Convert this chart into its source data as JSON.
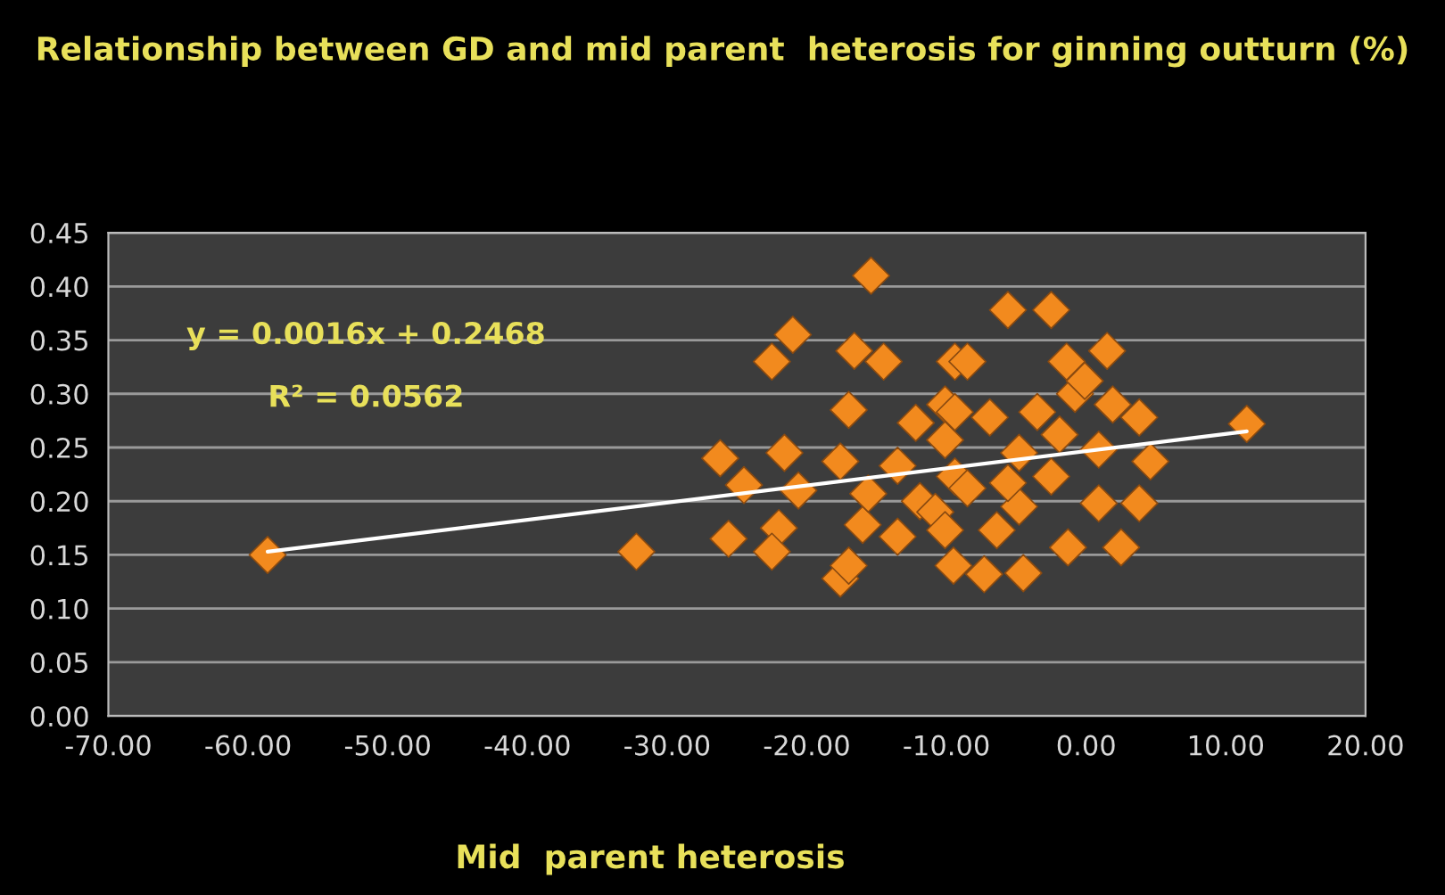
{
  "chart_data": {
    "type": "scatter",
    "title": "Relationship between GD and mid parent  heterosis for ginning outturn (%)",
    "xlabel": "Mid  parent heterosis",
    "annotations": [
      "y = 0.0016x + 0.2468",
      "R² = 0.0562"
    ],
    "series": [
      {
        "color": "#f28a1e",
        "marker": "diamond",
        "x": [
          -58.6,
          -32.2,
          -15.4,
          -21.0,
          -22.5,
          -16.6,
          -14.5,
          -9.4,
          -17.0,
          -26.2,
          -21.6,
          -24.5,
          -20.6,
          -17.6,
          -25.6,
          -22.0,
          -22.5,
          -17.6,
          -17.0,
          -16.0,
          -13.5,
          -11.9,
          -15.6,
          -12.2,
          -10.1,
          -10.1,
          -13.5,
          -9.5,
          -10.8,
          -9.4,
          -5.6,
          -2.5,
          -8.5,
          1.5,
          -1.4,
          -0.8,
          1.9,
          3.8,
          11.5,
          4.6,
          0.9,
          0.9,
          3.8,
          2.5,
          -1.3,
          -4.5,
          -7.3,
          -2.5,
          -4.8,
          -6.9,
          -3.5,
          -9.4,
          -8.5,
          -4.8,
          -6.4,
          -10.1,
          -0.1,
          -1.9,
          -5.6
        ],
        "values": [
          0.15,
          0.153,
          0.41,
          0.355,
          0.33,
          0.34,
          0.33,
          0.33,
          0.285,
          0.24,
          0.245,
          0.215,
          0.21,
          0.237,
          0.165,
          0.175,
          0.153,
          0.128,
          0.14,
          0.178,
          0.167,
          0.2,
          0.207,
          0.273,
          0.29,
          0.257,
          0.233,
          0.14,
          0.19,
          0.223,
          0.378,
          0.378,
          0.33,
          0.34,
          0.33,
          0.3,
          0.29,
          0.278,
          0.272,
          0.237,
          0.248,
          0.198,
          0.198,
          0.157,
          0.157,
          0.133,
          0.132,
          0.223,
          0.245,
          0.278,
          0.283,
          0.283,
          0.212,
          0.195,
          0.173,
          0.173,
          0.312,
          0.262,
          0.217
        ]
      },
      {
        "type": "line",
        "color": "#ffffff",
        "line_style": "solid",
        "x": [
          -58.6,
          11.5
        ],
        "values": [
          0.153,
          0.265
        ]
      }
    ],
    "xlim": [
      -70,
      20
    ],
    "ylim": [
      0,
      0.45
    ],
    "xticks": [
      {
        "value": -70,
        "label": "-70.00"
      },
      {
        "value": -60,
        "label": "-60.00"
      },
      {
        "value": -50,
        "label": "-50.00"
      },
      {
        "value": -40,
        "label": "-40.00"
      },
      {
        "value": -30,
        "label": "-30.00"
      },
      {
        "value": -20,
        "label": "-20.00"
      },
      {
        "value": -10,
        "label": "-10.00"
      },
      {
        "value": 0,
        "label": "0.00"
      },
      {
        "value": 10,
        "label": "10.00"
      },
      {
        "value": 20,
        "label": "20.00"
      }
    ],
    "yticks": [
      {
        "value": 0,
        "label": "0.00"
      },
      {
        "value": 0.05,
        "label": "0.05"
      },
      {
        "value": 0.1,
        "label": "0.10"
      },
      {
        "value": 0.15,
        "label": "0.15"
      },
      {
        "value": 0.2,
        "label": "0.20"
      },
      {
        "value": 0.25,
        "label": "0.25"
      },
      {
        "value": 0.3,
        "label": "0.30"
      },
      {
        "value": 0.35,
        "label": "0.35"
      },
      {
        "value": 0.4,
        "label": "0.40"
      },
      {
        "value": 0.45,
        "label": "0.45"
      }
    ],
    "grid": "y",
    "legend": false
  }
}
